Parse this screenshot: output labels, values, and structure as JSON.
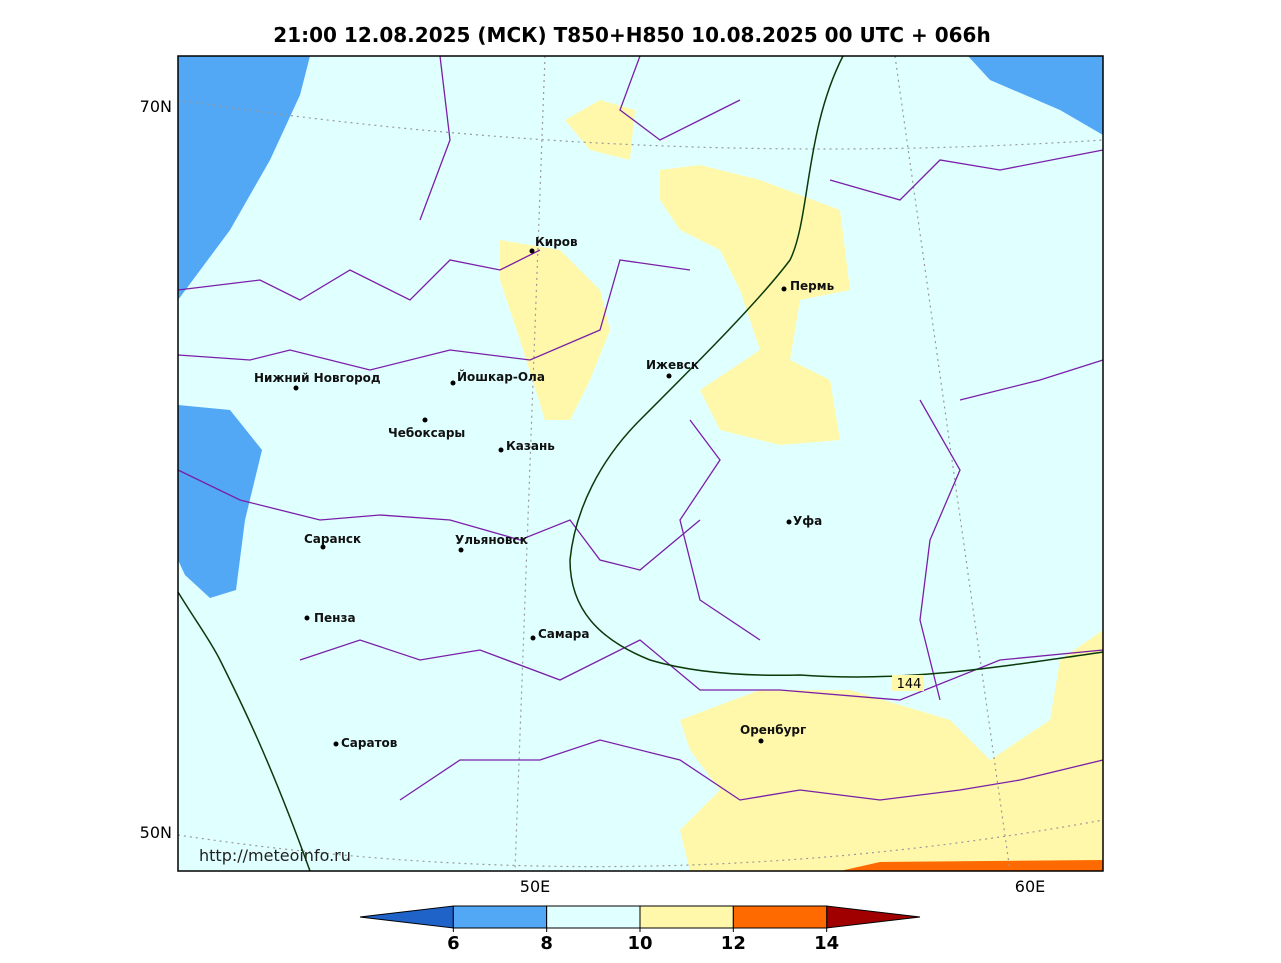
{
  "title": "21:00 12.08.2025 (МСК) T850+H850 10.08.2025 00 UTC + 066h",
  "lat_labels": [
    "70N",
    "50N"
  ],
  "lon_labels": [
    "50E",
    "60E"
  ],
  "cities": [
    "Киров",
    "Пермь",
    "Нижний Новгород",
    "Йошкар-Ола",
    "Ижевск",
    "Чебоксары",
    "Казань",
    "Уфа",
    "Саранск",
    "Ульяновск",
    "Пенза",
    "Самара",
    "Оренбург",
    "Саратов"
  ],
  "contour_label": "144",
  "watermark": "http://meteoinfo.ru",
  "colorbar": {
    "ticks": [
      6,
      8,
      10,
      12,
      14
    ],
    "range": [
      4,
      16
    ],
    "colors": [
      "#1f63c9",
      "#52a8f5",
      "#e0ffff",
      "#fff8aa",
      "#ff6a00",
      "#a00000"
    ]
  }
}
